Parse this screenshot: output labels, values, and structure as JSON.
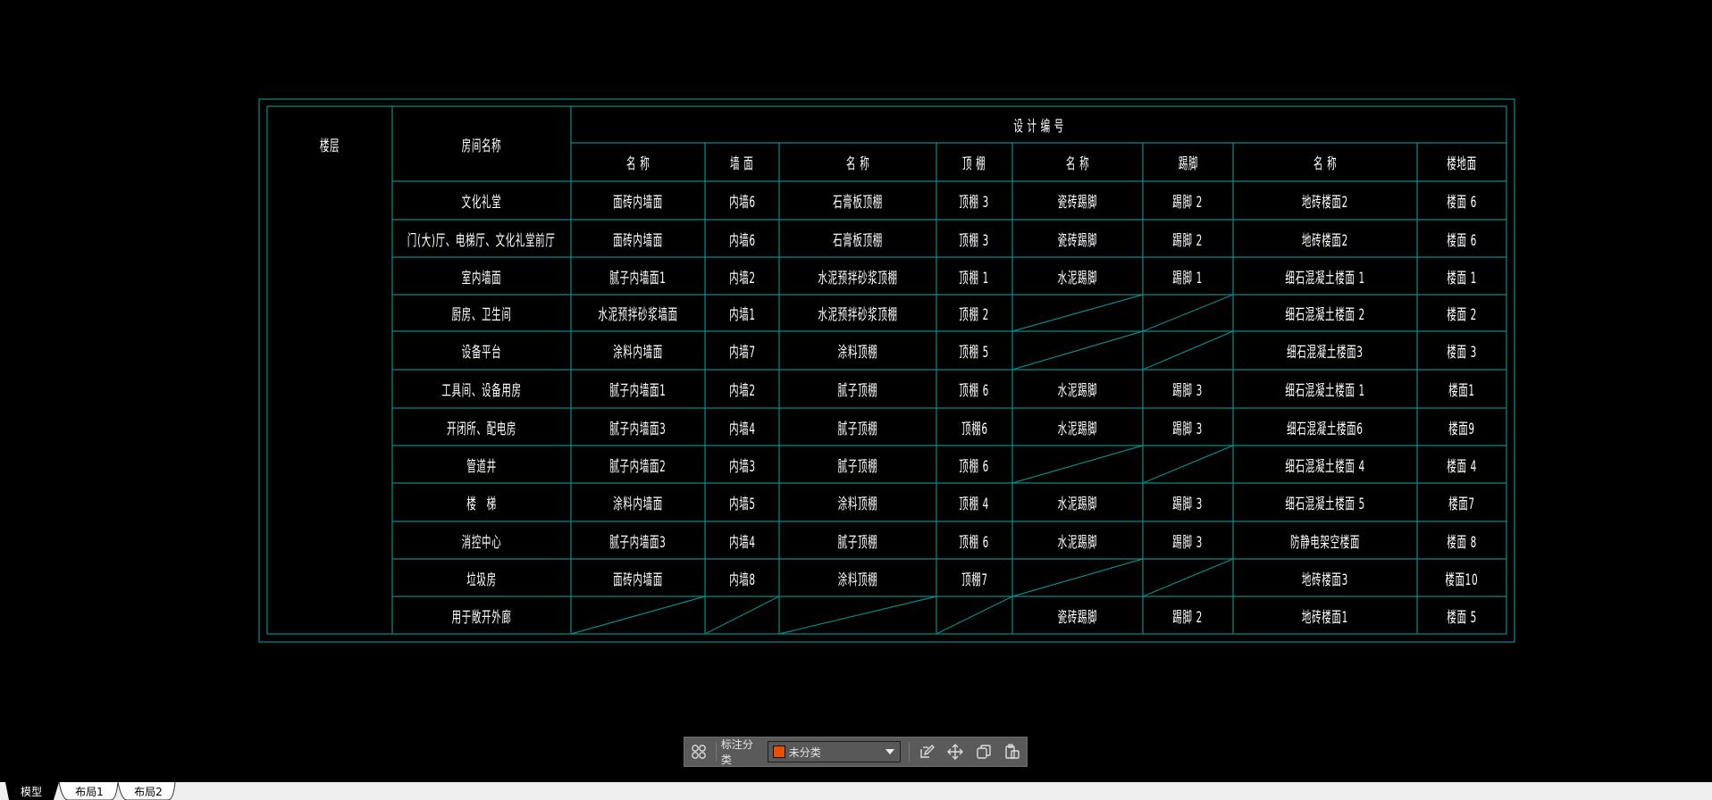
{
  "table": {
    "header": {
      "floor": "楼层",
      "room": "房间名称",
      "design_code": "设 计 编 号",
      "sub": [
        "名 称",
        "墙 面",
        "名 称",
        "顶 棚",
        "名 称",
        "踢脚",
        "名 称",
        "楼地面"
      ]
    },
    "rows": [
      [
        "文化礼堂",
        "面砖内墙面",
        "内墙6",
        "石膏板顶棚",
        "顶棚 3",
        "瓷砖踢脚",
        "踢脚 2",
        "地砖楼面2",
        "楼面 6"
      ],
      [
        "门(大)厅、电梯厅、文化礼堂前厅",
        "面砖内墙面",
        "内墙6",
        "石膏板顶棚",
        "顶棚 3",
        "瓷砖踢脚",
        "踢脚 2",
        "地砖楼面2",
        "楼面 6"
      ],
      [
        "室内墙面",
        "腻子内墙面1",
        "内墙2",
        "水泥预拌砂浆顶棚",
        "顶棚 1",
        "水泥踢脚",
        "踢脚 1",
        "细石混凝土楼面 1",
        "楼面 1"
      ],
      [
        "厨房、卫生间",
        "水泥预拌砂浆墙面",
        "内墙1",
        "水泥预拌砂浆顶棚",
        "顶棚 2",
        null,
        null,
        "细石混凝土楼面 2",
        "楼面 2"
      ],
      [
        "设备平台",
        "涂料内墙面",
        "内墙7",
        "涂料顶棚",
        "顶棚 5",
        null,
        null,
        "细石混凝土楼面3",
        "楼面 3"
      ],
      [
        "工具间、设备用房",
        "腻子内墙面1",
        "内墙2",
        "腻子顶棚",
        "顶棚 6",
        "水泥踢脚",
        "踢脚 3",
        "细石混凝土楼面 1",
        "楼面1"
      ],
      [
        "开闭所、配电房",
        "腻子内墙面3",
        "内墙4",
        "腻子顶棚",
        "顶棚6",
        "水泥踢脚",
        "踢脚 3",
        "细石混凝土楼面6",
        "楼面9"
      ],
      [
        "管道井",
        "腻子内墙面2",
        "内墙3",
        "腻子顶棚",
        "顶棚 6",
        null,
        null,
        "细石混凝土楼面 4",
        "楼面 4"
      ],
      [
        "楼　梯",
        "涂料内墙面",
        "内墙5",
        "涂料顶棚",
        "顶棚 4",
        "水泥踢脚",
        "踢脚 3",
        "细石混凝土楼面 5",
        "楼面7"
      ],
      [
        "消控中心",
        "腻子内墙面3",
        "内墙4",
        "腻子顶棚",
        "顶棚 6",
        "水泥踢脚",
        "踢脚 3",
        "防静电架空楼面",
        "楼面 8"
      ],
      [
        "垃圾房",
        "面砖内墙面",
        "内墙8",
        "涂料顶棚",
        "顶棚7",
        null,
        null,
        "地砖楼面3",
        "楼面10"
      ],
      [
        "用于敞开外廊",
        null,
        null,
        null,
        null,
        "瓷砖踢脚",
        "踢脚 2",
        "地砖楼面1",
        "楼面 5"
      ]
    ]
  },
  "colors": {
    "grid": "#0a8a8a",
    "background": "#000000",
    "text": "#ffffff",
    "swatch": "#e65100"
  },
  "toolbar": {
    "label": "标注分类",
    "selected": "未分类",
    "icons": [
      "grid-icon",
      "edit-icon",
      "move-icon",
      "copy-icon",
      "paste-icon"
    ]
  },
  "tabs": [
    "模型",
    "布局1",
    "布局2"
  ],
  "active_tab": "模型"
}
